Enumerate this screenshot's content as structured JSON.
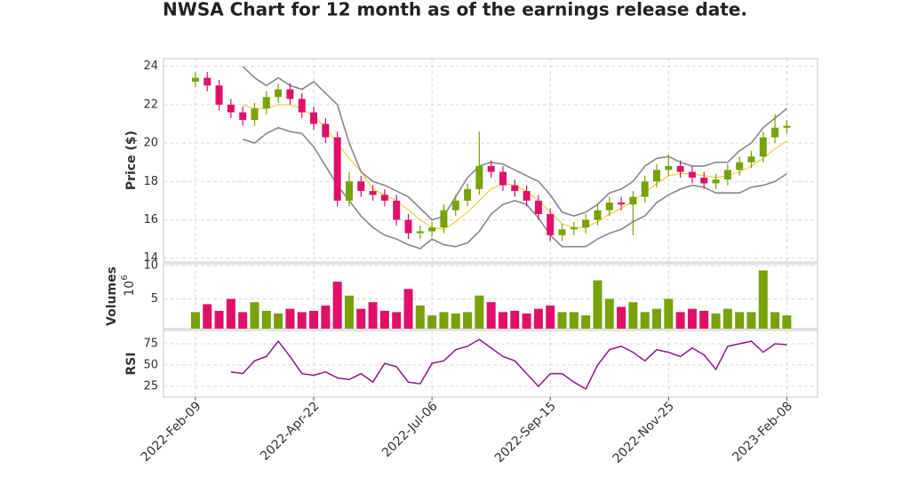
{
  "chart_data": [
    {
      "type": "candlestick",
      "title": "NWSA Chart for 12 month as of the earnings release date.",
      "ylabel": "Price ($)",
      "x": [
        0,
        5,
        10,
        15,
        20,
        25,
        30,
        35,
        40,
        45,
        50,
        55,
        60,
        65,
        70,
        75,
        80,
        85,
        90,
        95,
        100,
        105,
        110,
        115,
        120,
        125,
        130,
        135,
        140,
        145,
        150,
        155,
        160,
        165,
        170,
        175,
        180,
        185,
        190,
        195,
        200,
        205,
        210,
        215,
        220,
        225,
        230,
        235,
        240,
        245,
        250
      ],
      "open": [
        23.2,
        23.4,
        23.0,
        22.0,
        21.6,
        21.2,
        21.8,
        22.4,
        22.8,
        22.3,
        21.6,
        21.0,
        20.3,
        17.0,
        18.0,
        17.5,
        17.3,
        17.0,
        16.0,
        15.3,
        15.4,
        15.6,
        16.5,
        17.0,
        17.6,
        18.8,
        18.5,
        17.8,
        17.5,
        17.0,
        16.3,
        15.2,
        15.5,
        15.6,
        16.0,
        16.5,
        16.9,
        16.8,
        17.2,
        18.0,
        18.6,
        18.8,
        18.5,
        18.2,
        17.9,
        18.1,
        18.6,
        19.0,
        19.3,
        20.3,
        20.8
      ],
      "high": [
        23.7,
        23.7,
        23.3,
        22.3,
        21.9,
        22.1,
        22.7,
        23.1,
        23.1,
        22.6,
        21.9,
        21.3,
        20.6,
        18.5,
        18.3,
        17.8,
        17.6,
        17.3,
        16.3,
        15.7,
        15.9,
        16.8,
        17.3,
        17.9,
        20.6,
        19.1,
        18.8,
        18.1,
        17.8,
        17.3,
        16.6,
        15.8,
        15.9,
        16.3,
        16.8,
        17.2,
        17.2,
        17.5,
        18.3,
        18.9,
        19.4,
        19.1,
        18.8,
        18.5,
        18.4,
        18.9,
        19.3,
        19.6,
        20.6,
        21.5,
        21.2
      ],
      "low": [
        22.9,
        22.7,
        21.7,
        21.3,
        20.9,
        20.9,
        21.5,
        22.1,
        22.0,
        21.3,
        20.7,
        20.0,
        16.7,
        16.7,
        17.2,
        17.0,
        16.7,
        15.7,
        15.0,
        15.0,
        15.1,
        15.3,
        16.2,
        16.7,
        17.3,
        18.2,
        17.5,
        17.2,
        16.7,
        16.0,
        14.9,
        14.9,
        15.2,
        15.3,
        15.7,
        16.2,
        16.5,
        15.2,
        16.9,
        17.7,
        18.3,
        18.2,
        17.9,
        17.6,
        17.6,
        17.8,
        18.3,
        18.7,
        19.0,
        20.0,
        20.5
      ],
      "close": [
        23.4,
        23.0,
        22.0,
        21.6,
        21.2,
        21.8,
        22.4,
        22.8,
        22.3,
        21.6,
        21.0,
        20.3,
        17.0,
        18.0,
        17.5,
        17.3,
        17.0,
        16.0,
        15.3,
        15.4,
        15.6,
        16.5,
        17.0,
        17.6,
        18.8,
        18.5,
        17.8,
        17.5,
        17.0,
        16.3,
        15.2,
        15.5,
        15.6,
        16.0,
        16.5,
        16.9,
        16.8,
        17.2,
        18.0,
        18.6,
        18.8,
        18.5,
        18.2,
        17.9,
        18.1,
        18.6,
        19.0,
        19.3,
        20.3,
        20.8,
        20.9
      ],
      "up_color": "#77a20a",
      "down_color": "#e0106a",
      "overlays": [
        {
          "color": "#f5c518",
          "values": [
            null,
            null,
            null,
            null,
            22.0,
            21.8,
            21.8,
            22.0,
            22.0,
            21.8,
            21.4,
            20.8,
            20.0,
            19.2,
            18.5,
            17.6,
            17.3,
            17.0,
            16.5,
            16.0,
            15.6,
            15.5,
            15.9,
            16.4,
            17.0,
            17.6,
            17.9,
            17.8,
            17.5,
            17.0,
            16.4,
            15.8,
            15.6,
            15.6,
            15.9,
            16.3,
            16.6,
            17.0,
            17.4,
            17.9,
            18.3,
            18.4,
            18.4,
            18.3,
            18.2,
            18.3,
            18.5,
            18.8,
            19.2,
            19.7,
            20.1
          ]
        },
        {
          "color": "#888888",
          "values": [
            null,
            null,
            null,
            null,
            24.0,
            23.4,
            23.0,
            23.4,
            23.0,
            22.8,
            23.2,
            22.6,
            22.0,
            20.0,
            18.5,
            18.0,
            17.8,
            17.5,
            17.2,
            16.6,
            16.0,
            16.2,
            17.2,
            18.2,
            18.8,
            19.0,
            18.9,
            18.6,
            18.3,
            18.0,
            17.3,
            16.4,
            16.2,
            16.4,
            16.8,
            17.4,
            17.6,
            18.0,
            18.8,
            19.2,
            19.3,
            19.0,
            18.8,
            18.8,
            19.0,
            19.0,
            19.6,
            20.0,
            20.8,
            21.3,
            21.8
          ]
        },
        {
          "color": "#888888",
          "values": [
            null,
            null,
            null,
            null,
            20.2,
            20.0,
            20.5,
            20.8,
            20.6,
            20.5,
            19.8,
            18.8,
            17.8,
            17.0,
            16.2,
            15.6,
            15.2,
            15.0,
            14.7,
            14.5,
            15.0,
            14.7,
            14.6,
            14.8,
            15.4,
            16.3,
            16.8,
            17.0,
            16.8,
            16.1,
            15.2,
            14.6,
            14.6,
            14.6,
            15.0,
            15.3,
            15.5,
            15.9,
            16.2,
            16.9,
            17.3,
            17.6,
            17.8,
            17.7,
            17.4,
            17.4,
            17.4,
            17.7,
            17.8,
            18.0,
            18.4
          ]
        }
      ],
      "xlim": [
        -13.5,
        263
      ],
      "ylim": [
        13.8,
        24.4
      ],
      "yticks": [
        14,
        16,
        18,
        20,
        22,
        24
      ],
      "grid": true
    },
    {
      "type": "bar",
      "ylabel": "Volumes",
      "multiplier_base": "10",
      "multiplier_exponent": "6",
      "values": [
        3.0,
        4.2,
        3.2,
        5.0,
        3.0,
        4.5,
        3.2,
        2.8,
        3.5,
        3.0,
        3.2,
        4.0,
        7.6,
        5.5,
        3.5,
        4.5,
        3.2,
        3.0,
        6.5,
        4.0,
        2.5,
        3.0,
        2.8,
        3.0,
        5.5,
        4.5,
        3.0,
        3.2,
        2.8,
        3.5,
        4.0,
        3.0,
        3.0,
        2.5,
        7.8,
        5.0,
        3.8,
        4.5,
        3.0,
        3.5,
        5.0,
        3.0,
        3.5,
        3.2,
        2.8,
        3.5,
        3.0,
        3.0,
        9.3,
        3.0,
        2.5
      ],
      "ylim": [
        0.5,
        10.3
      ],
      "yticks": [
        5,
        10
      ],
      "grid": true
    },
    {
      "type": "line",
      "ylabel": "RSI",
      "color": "#8b1a89",
      "values": [
        null,
        null,
        null,
        42,
        40,
        55,
        60,
        78,
        60,
        40,
        38,
        42,
        35,
        33,
        40,
        30,
        52,
        48,
        30,
        28,
        52,
        55,
        68,
        72,
        80,
        70,
        60,
        55,
        40,
        25,
        40,
        40,
        30,
        22,
        50,
        68,
        72,
        65,
        55,
        68,
        65,
        60,
        70,
        62,
        45,
        72,
        75,
        78,
        65,
        75,
        74
      ],
      "ylim": [
        12.5,
        90.6
      ],
      "yticks": [
        25,
        50,
        75
      ],
      "xticks": [
        {
          "value": 0,
          "label": "2022-Feb-09"
        },
        {
          "value": 50,
          "label": "2022-Apr-22"
        },
        {
          "value": 100,
          "label": "2022-Jul-06"
        },
        {
          "value": 150,
          "label": "2022-Sep-15"
        },
        {
          "value": 200,
          "label": "2022-Nov-25"
        },
        {
          "value": 250,
          "label": "2023-Feb-08"
        }
      ],
      "grid": true
    }
  ]
}
